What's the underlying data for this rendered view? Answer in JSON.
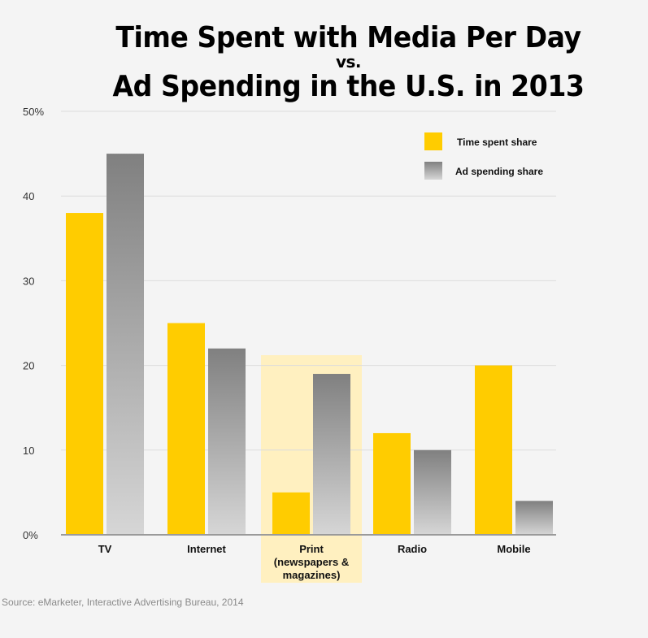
{
  "title": {
    "line1": "Time Spent with Media Per Day",
    "line2": "vs.",
    "line3": "Ad Spending in the U.S. in 2013"
  },
  "source": "Source: eMarketer, Interactive Advertising Bureau, 2014",
  "colors": {
    "time": "#ffcc00",
    "ad_top": "#808080",
    "ad_bottom": "#d6d6d6",
    "highlight": "#fff0c0",
    "grid": "#dcdcdc",
    "background": "#f4f4f4"
  },
  "chart_data": {
    "type": "bar",
    "title": "Time Spent with Media Per Day vs. Ad Spending in the U.S. in 2013",
    "xlabel": "",
    "ylabel": "",
    "ylim": [
      0,
      50
    ],
    "yticks": [
      0,
      10,
      20,
      30,
      40,
      50
    ],
    "ytick_labels": [
      "0%",
      "10",
      "20",
      "30",
      "40",
      "50%"
    ],
    "grid": true,
    "legend_position": "top-right",
    "categories": [
      [
        "TV"
      ],
      [
        "Internet"
      ],
      [
        "Print",
        "(newspapers &",
        "magazines)"
      ],
      [
        "Radio"
      ],
      [
        "Mobile"
      ]
    ],
    "highlighted_category": 2,
    "series": [
      {
        "name": "Time spent share",
        "values": [
          38,
          25,
          5,
          12,
          20
        ]
      },
      {
        "name": "Ad spending share",
        "values": [
          45,
          22,
          19,
          10,
          4
        ]
      }
    ]
  }
}
